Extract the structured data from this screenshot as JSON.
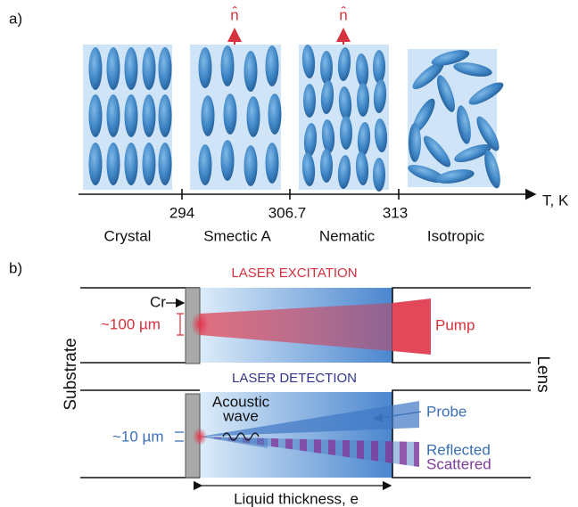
{
  "panel_a": {
    "label": "a)",
    "director_labels": [
      "n̂",
      "n̂"
    ],
    "temperatures": [
      "294",
      "306.7",
      "313"
    ],
    "axis_label": "T, K",
    "phases": [
      "Crystal",
      "Smectic A",
      "Nematic",
      "Isotropic"
    ]
  },
  "panel_b": {
    "label": "b)",
    "excitation_title": "LASER EXCITATION",
    "detection_title": "LASER DETECTION",
    "cr_label": "Cr",
    "pump_spot": "~100 µm",
    "pump": "Pump",
    "substrate": "Substrate",
    "lens": "Lens",
    "acoustic_wave": [
      "Acoustic",
      "wave"
    ],
    "probe": "Probe",
    "probe_spot": "~10 µm",
    "reflected": "Reflected",
    "scattered": "Scattered",
    "thickness": "Liquid thickness, e"
  }
}
